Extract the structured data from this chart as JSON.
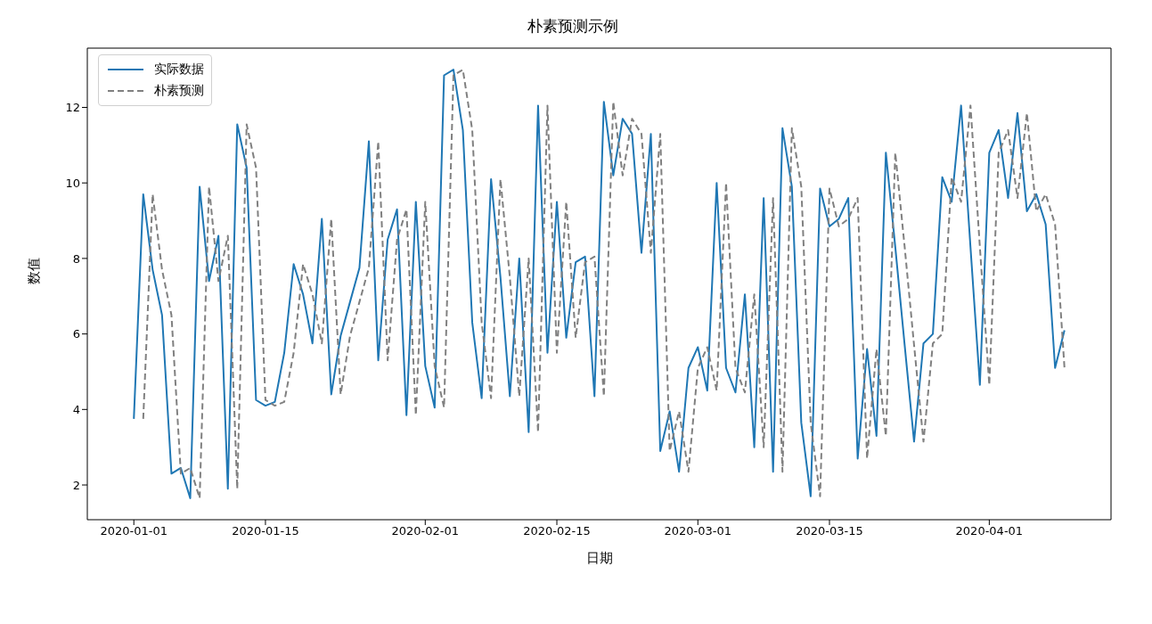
{
  "chart_data": {
    "type": "line",
    "title": "朴素预测示例",
    "xlabel": "日期",
    "ylabel": "数值",
    "x": [
      "2020-01-01",
      "2020-01-02",
      "2020-01-03",
      "2020-01-04",
      "2020-01-05",
      "2020-01-06",
      "2020-01-07",
      "2020-01-08",
      "2020-01-09",
      "2020-01-10",
      "2020-01-11",
      "2020-01-12",
      "2020-01-13",
      "2020-01-14",
      "2020-01-15",
      "2020-01-16",
      "2020-01-17",
      "2020-01-18",
      "2020-01-19",
      "2020-01-20",
      "2020-01-21",
      "2020-01-22",
      "2020-01-23",
      "2020-01-24",
      "2020-01-25",
      "2020-01-26",
      "2020-01-27",
      "2020-01-28",
      "2020-01-29",
      "2020-01-30",
      "2020-01-31",
      "2020-02-01",
      "2020-02-02",
      "2020-02-03",
      "2020-02-04",
      "2020-02-05",
      "2020-02-06",
      "2020-02-07",
      "2020-02-08",
      "2020-02-09",
      "2020-02-10",
      "2020-02-11",
      "2020-02-12",
      "2020-02-13",
      "2020-02-14",
      "2020-02-15",
      "2020-02-16",
      "2020-02-17",
      "2020-02-18",
      "2020-02-19",
      "2020-02-20",
      "2020-02-21",
      "2020-02-22",
      "2020-02-23",
      "2020-02-24",
      "2020-02-25",
      "2020-02-26",
      "2020-02-27",
      "2020-02-28",
      "2020-02-29",
      "2020-03-01",
      "2020-03-02",
      "2020-03-03",
      "2020-03-04",
      "2020-03-05",
      "2020-03-06",
      "2020-03-07",
      "2020-03-08",
      "2020-03-09",
      "2020-03-10",
      "2020-03-11",
      "2020-03-12",
      "2020-03-13",
      "2020-03-14",
      "2020-03-15",
      "2020-03-16",
      "2020-03-17",
      "2020-03-18",
      "2020-03-19",
      "2020-03-20",
      "2020-03-21",
      "2020-03-22",
      "2020-03-23",
      "2020-03-24",
      "2020-03-25",
      "2020-03-26",
      "2020-03-27",
      "2020-03-28",
      "2020-03-29",
      "2020-03-30",
      "2020-03-31",
      "2020-04-01",
      "2020-04-02",
      "2020-04-03",
      "2020-04-04",
      "2020-04-05",
      "2020-04-06",
      "2020-04-07",
      "2020-04-08",
      "2020-04-09"
    ],
    "series": [
      {
        "name": "实际数据",
        "color": "#1f77b4",
        "line_style": "solid",
        "values": [
          3.75,
          9.7,
          7.7,
          6.5,
          2.3,
          2.45,
          1.65,
          9.9,
          7.4,
          8.6,
          1.9,
          11.55,
          10.4,
          4.25,
          4.1,
          4.2,
          5.5,
          7.85,
          7.05,
          5.75,
          9.05,
          4.4,
          5.95,
          6.85,
          7.75,
          11.1,
          5.3,
          8.5,
          9.3,
          3.85,
          9.5,
          5.15,
          4.05,
          12.85,
          13.0,
          11.4,
          6.3,
          4.3,
          10.1,
          7.5,
          4.35,
          8.0,
          3.4,
          12.05,
          5.5,
          9.5,
          5.9,
          7.9,
          8.05,
          4.35,
          12.15,
          10.2,
          11.7,
          11.3,
          8.15,
          11.3,
          2.9,
          3.95,
          2.35,
          5.1,
          5.65,
          4.5,
          10.0,
          5.1,
          4.45,
          7.05,
          3.0,
          9.6,
          2.35,
          11.45,
          9.9,
          3.65,
          1.7,
          9.85,
          8.85,
          9.05,
          9.6,
          2.7,
          5.6,
          3.3,
          10.8,
          8.3,
          5.7,
          3.15,
          5.75,
          6.0,
          10.15,
          9.5,
          12.05,
          8.3,
          4.65,
          10.8,
          11.4,
          9.6,
          11.85,
          9.25,
          9.7,
          8.9,
          5.1,
          6.1
        ]
      },
      {
        "name": "朴素预测",
        "color": "#808080",
        "line_style": "dashed",
        "values": [
          null,
          3.75,
          9.7,
          7.7,
          6.5,
          2.3,
          2.45,
          1.65,
          9.9,
          7.4,
          8.6,
          1.9,
          11.55,
          10.4,
          4.25,
          4.1,
          4.2,
          5.5,
          7.85,
          7.05,
          5.75,
          9.05,
          4.4,
          5.95,
          6.85,
          7.75,
          11.1,
          5.3,
          8.5,
          9.3,
          3.85,
          9.5,
          5.15,
          4.05,
          12.85,
          13.0,
          11.4,
          6.3,
          4.3,
          10.1,
          7.5,
          4.35,
          8.0,
          3.4,
          12.05,
          5.5,
          9.5,
          5.9,
          7.9,
          8.05,
          4.35,
          12.15,
          10.2,
          11.7,
          11.3,
          8.15,
          11.3,
          2.9,
          3.95,
          2.35,
          5.1,
          5.65,
          4.5,
          10.0,
          5.1,
          4.45,
          7.05,
          3.0,
          9.6,
          2.35,
          11.45,
          9.9,
          3.65,
          1.7,
          9.85,
          8.85,
          9.05,
          9.6,
          2.7,
          5.6,
          3.3,
          10.8,
          8.3,
          5.7,
          3.15,
          5.75,
          6.0,
          10.15,
          9.5,
          12.05,
          8.3,
          4.65,
          10.8,
          11.4,
          9.6,
          11.85,
          9.25,
          9.7,
          8.9,
          5.1
        ]
      }
    ],
    "xlim": [
      "2019-12-27T01:12",
      "2020-04-13T22:48"
    ],
    "xticks": [
      "2020-01-01",
      "2020-01-15",
      "2020-02-01",
      "2020-02-15",
      "2020-03-01",
      "2020-03-15",
      "2020-04-01"
    ],
    "ylim": [
      1.08,
      13.57
    ],
    "yticks": [
      2,
      4,
      6,
      8,
      10,
      12
    ],
    "legend": "top left"
  }
}
